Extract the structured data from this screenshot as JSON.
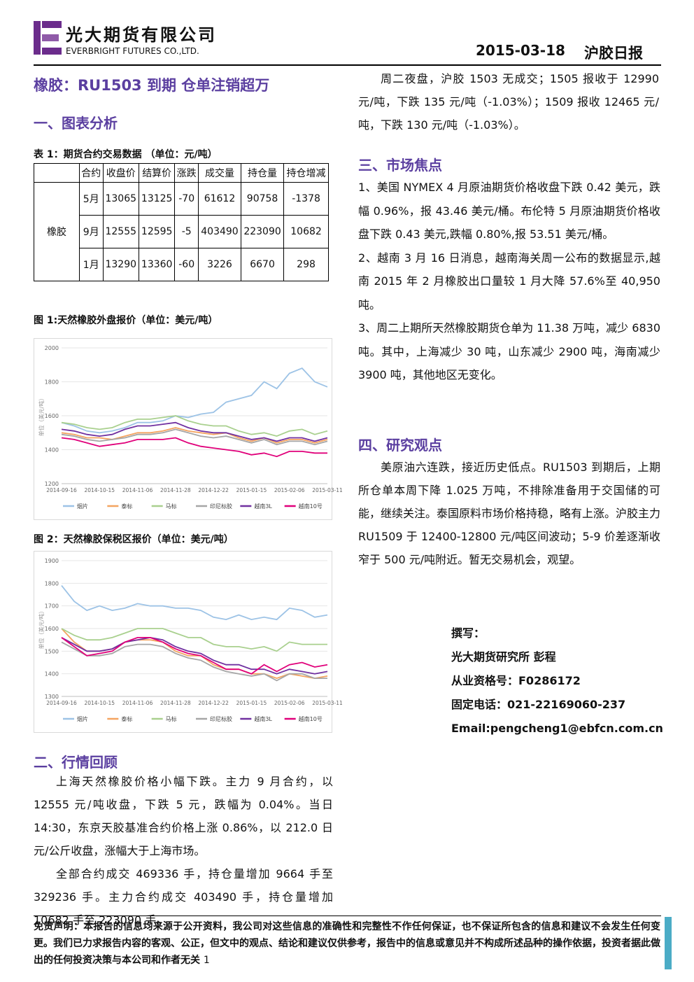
{
  "header": {
    "company_cn": "光大期货有限公司",
    "company_en": "EVERBRIGHT FUTURES CO.,LTD.",
    "date": "2015-03-18",
    "report_name": "沪胶日报"
  },
  "title": "橡胶：RU1503 到期 仓单注销超万",
  "section1": "一、图表分析",
  "table": {
    "caption": "表 1：期货合约交易数据 （单位：元/吨）",
    "header": [
      "合约",
      "收盘价",
      "结算价",
      "涨跌",
      "成交量",
      "持仓量",
      "持仓增减"
    ],
    "row_group": "橡胶",
    "rows": [
      [
        "5月",
        13065,
        13125,
        -70,
        61612,
        90758,
        -1378
      ],
      [
        "9月",
        12555,
        12595,
        -5,
        403490,
        223090,
        10682
      ],
      [
        "1月",
        13290,
        13360,
        -60,
        3226,
        6670,
        298
      ]
    ]
  },
  "chart_data": [
    {
      "type": "line",
      "title": "图 1:天然橡胶外盘报价（单位：美元/吨）",
      "y_label": "单位（美元/吨）",
      "categories": [
        "2014-09-16",
        null,
        null,
        "2014-10-15",
        null,
        null,
        "2014-11-06",
        null,
        null,
        "2014-11-28",
        null,
        null,
        "2014-12-22",
        null,
        null,
        "2015-01-15",
        null,
        null,
        "2015-02-06",
        null,
        null,
        "2015-03-11"
      ],
      "ylim": [
        1200,
        2000
      ],
      "yticks": [
        1200,
        1400,
        1600,
        1800,
        2000
      ],
      "grid": true,
      "series": [
        {
          "name": "烟片",
          "color": "#9dc3e6",
          "values": [
            1560,
            1540,
            1510,
            1500,
            1510,
            1530,
            1560,
            1560,
            1570,
            1600,
            1590,
            1610,
            1620,
            1680,
            1700,
            1720,
            1800,
            1760,
            1850,
            1880,
            1800,
            1770
          ]
        },
        {
          "name": "泰标",
          "color": "#f4a460",
          "values": [
            1500,
            1490,
            1470,
            1470,
            1460,
            1480,
            1500,
            1500,
            1510,
            1530,
            1510,
            1500,
            1490,
            1500,
            1470,
            1450,
            1470,
            1440,
            1460,
            1460,
            1440,
            1460
          ]
        },
        {
          "name": "马标",
          "color": "#a9d08e",
          "values": [
            1560,
            1550,
            1530,
            1520,
            1530,
            1560,
            1580,
            1580,
            1590,
            1600,
            1570,
            1550,
            1540,
            1540,
            1510,
            1490,
            1500,
            1480,
            1510,
            1520,
            1490,
            1510
          ]
        },
        {
          "name": "印尼标胶",
          "color": "#a6a6a6",
          "values": [
            1490,
            1480,
            1460,
            1450,
            1460,
            1470,
            1490,
            1490,
            1500,
            1520,
            1500,
            1480,
            1470,
            1480,
            1460,
            1440,
            1460,
            1430,
            1450,
            1450,
            1430,
            1450
          ]
        },
        {
          "name": "越南3L",
          "color": "#7030a0",
          "values": [
            1520,
            1510,
            1490,
            1480,
            1490,
            1520,
            1540,
            1540,
            1550,
            1560,
            1530,
            1510,
            1500,
            1500,
            1480,
            1460,
            1470,
            1450,
            1470,
            1470,
            1450,
            1470
          ]
        },
        {
          "name": "越南10号",
          "color": "#e0007a",
          "values": [
            1470,
            1460,
            1440,
            1420,
            1430,
            1440,
            1460,
            1460,
            1460,
            1470,
            1440,
            1420,
            1410,
            1400,
            1390,
            1370,
            1380,
            1360,
            1390,
            1390,
            1380,
            1380
          ]
        }
      ]
    },
    {
      "type": "line",
      "title": "图 2：天然橡胶保税区报价（单位：美元/吨）",
      "y_label": "单位（美元/吨）",
      "categories": [
        "2014-09-16",
        null,
        null,
        "2014-10-15",
        null,
        null,
        "2014-11-06",
        null,
        null,
        "2014-11-28",
        null,
        null,
        "2014-12-22",
        null,
        null,
        "2015-01-15",
        null,
        null,
        "2015-02-06",
        null,
        null,
        "2015-03-11"
      ],
      "ylim": [
        1300,
        1900
      ],
      "yticks": [
        1300,
        1400,
        1500,
        1600,
        1700,
        1800,
        1900
      ],
      "grid": true,
      "series": [
        {
          "name": "烟片",
          "color": "#9dc3e6",
          "values": [
            1790,
            1720,
            1680,
            1700,
            1680,
            1690,
            1710,
            1700,
            1700,
            1690,
            1690,
            1680,
            1650,
            1640,
            1660,
            1640,
            1650,
            1640,
            1690,
            1680,
            1650,
            1660
          ]
        },
        {
          "name": "泰标",
          "color": "#f4a460",
          "values": [
            1600,
            1540,
            1500,
            1500,
            1510,
            1540,
            1550,
            1550,
            1540,
            1500,
            1480,
            1480,
            1440,
            1420,
            1420,
            1400,
            1400,
            1380,
            1400,
            1390,
            1380,
            1390
          ]
        },
        {
          "name": "马标",
          "color": "#a9d08e",
          "values": [
            1600,
            1570,
            1550,
            1550,
            1560,
            1580,
            1600,
            1600,
            1600,
            1580,
            1560,
            1560,
            1530,
            1520,
            1520,
            1510,
            1520,
            1500,
            1540,
            1530,
            1530,
            1530
          ]
        },
        {
          "name": "印尼标胶",
          "color": "#a6a6a6",
          "values": [
            1540,
            1510,
            1480,
            1480,
            1490,
            1520,
            1530,
            1530,
            1520,
            1490,
            1470,
            1460,
            1430,
            1410,
            1400,
            1390,
            1400,
            1370,
            1400,
            1400,
            1380,
            1380
          ]
        },
        {
          "name": "越南3L",
          "color": "#7030a0",
          "values": [
            1560,
            1530,
            1500,
            1500,
            1510,
            1540,
            1550,
            1560,
            1550,
            1520,
            1500,
            1490,
            1460,
            1440,
            1440,
            1420,
            1420,
            1400,
            1420,
            1410,
            1400,
            1410
          ]
        },
        {
          "name": "越南10号",
          "color": "#e0007a",
          "values": [
            1560,
            1520,
            1480,
            1490,
            1500,
            1540,
            1560,
            1560,
            1540,
            1510,
            1490,
            1480,
            1450,
            1420,
            1420,
            1400,
            1440,
            1410,
            1440,
            1450,
            1430,
            1440
          ]
        }
      ]
    }
  ],
  "section2": {
    "heading": "二、行情回顾",
    "paragraphs": [
      "上海天然橡胶价格小幅下跌。主力 9 月合约，以 12555 元/吨收盘，下跌 5 元，跌幅为 0.04%。当日 14:30，东京天胶基准合约价格上涨 0.86%，以 212.0 日元/公斤收盘，涨幅大于上海市场。",
      "全部合约成交 469336 手，持仓量增加 9664 手至 329236 手。主力合约成交 403490 手，持仓量增加 10682 手至 223090 手。",
      "周二夜盘，沪胶 1503 无成交；1505 报收于 12990 元/吨，下跌 135 元/吨（-1.03%）；1509 报收 12465 元/吨，下跌 130 元/吨（-1.03%）。"
    ]
  },
  "section3": {
    "heading": "三、市场焦点",
    "items": [
      "1、美国 NYMEX 4 月原油期货价格收盘下跌 0.42 美元，跌幅 0.96%，报 43.46 美元/桶。布伦特 5 月原油期货价格收盘下跌 0.43 美元,跌幅 0.80%,报 53.51 美元/桶。",
      "2、越南 3 月 16 日消息，越南海关周一公布的数据显示,越南 2015 年 2 月橡胶出口量较 1 月大降 57.6%至 40,950 吨。",
      "3、周二上期所天然橡胶期货仓单为 11.38 万吨，减少 6830 吨。其中，上海减少 30 吨，山东减少 2900 吨，海南减少 3900 吨，其他地区无变化。"
    ]
  },
  "section4": {
    "heading": "四、研究观点",
    "paragraphs": [
      "美原油六连跌，接近历史低点。RU1503 到期后，上期所仓单本周下降 1.025 万吨，不排除准备用于交国储的可能，继续关注。泰国原料市场价格持稳，略有上涨。沪胶主力 RU1509 于 12400-12800 元/吨区间波动；5-9 价差逐渐收窄于 500 元/吨附近。暂无交易机会，观望。"
    ]
  },
  "author": {
    "label": "撰写：",
    "lines": [
      "光大期货研究所 彭程",
      "从业资格号：F0286172",
      "固定电话：021-22169060-237",
      "Email:pengcheng1@ebfcn.com.cn"
    ]
  },
  "footer": {
    "disclaimer": "免责声明：本报告的信息均来源于公开资料，我公司对这些信息的准确性和完整性不作任何保证，也不保证所包含的信息和建议不会发生任何变更。我们已力求报告内容的客观、公正，但文中的观点、结论和建议仅供参考，报告中的信息或意见并不构成所述品种的操作依据，投资者据此做出的任何投资决策与本公司和作者无关",
    "page": 1
  }
}
